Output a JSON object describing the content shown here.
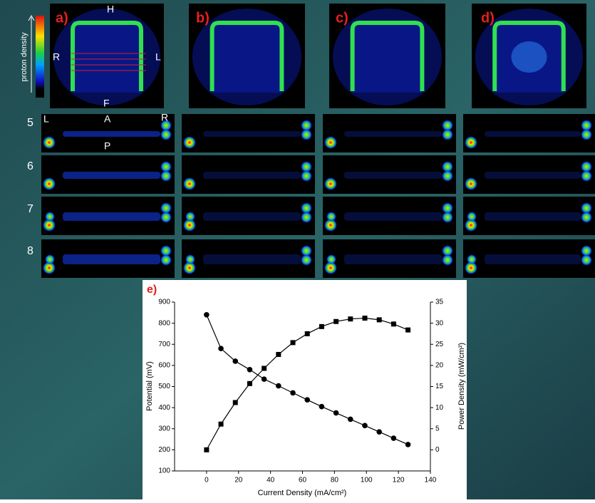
{
  "panels": {
    "labels": [
      "a)",
      "b)",
      "c)",
      "d)"
    ],
    "orientation": {
      "top": "H",
      "left": "R",
      "right": "L",
      "bottom": "F"
    },
    "colorbar_label": "proton density",
    "slices": {
      "left": "L",
      "anterior": "A",
      "right": "R",
      "posterior": "P",
      "rows": [
        "5",
        "6",
        "7",
        "8"
      ]
    }
  },
  "chart_data": {
    "type": "line",
    "panel_label": "e)",
    "x_label": "Current Density (mA/cm²)",
    "y_label": "Potential (mV)",
    "y2_label": "Power Density (mW/cm²)",
    "x": [
      0,
      9,
      18,
      27,
      36,
      45,
      54,
      63,
      72,
      81,
      90,
      99,
      108,
      117,
      126
    ],
    "series": [
      {
        "color": "#000000",
        "marker": "circle",
        "values": [
          840,
          680,
          620,
          580,
          535,
          503,
          470,
          437,
          405,
          375,
          345,
          315,
          285,
          255,
          225
        ]
      },
      {
        "color": "#000000",
        "marker": "square",
        "axis": "y2",
        "values": [
          0,
          6.1,
          11.2,
          15.7,
          19.3,
          22.6,
          25.4,
          27.5,
          29.2,
          30.4,
          31,
          31.2,
          30.8,
          29.8,
          28.4
        ]
      }
    ],
    "xlim": [
      -20,
      140
    ],
    "xticks": [
      0,
      20,
      40,
      60,
      80,
      100,
      120,
      140
    ],
    "ylim": [
      100,
      900
    ],
    "yticks": [
      100,
      200,
      300,
      400,
      500,
      600,
      700,
      800,
      900
    ],
    "y2lim": [
      -5,
      35
    ],
    "y2ticks": [
      0,
      5,
      10,
      15,
      20,
      25,
      30,
      35
    ]
  }
}
